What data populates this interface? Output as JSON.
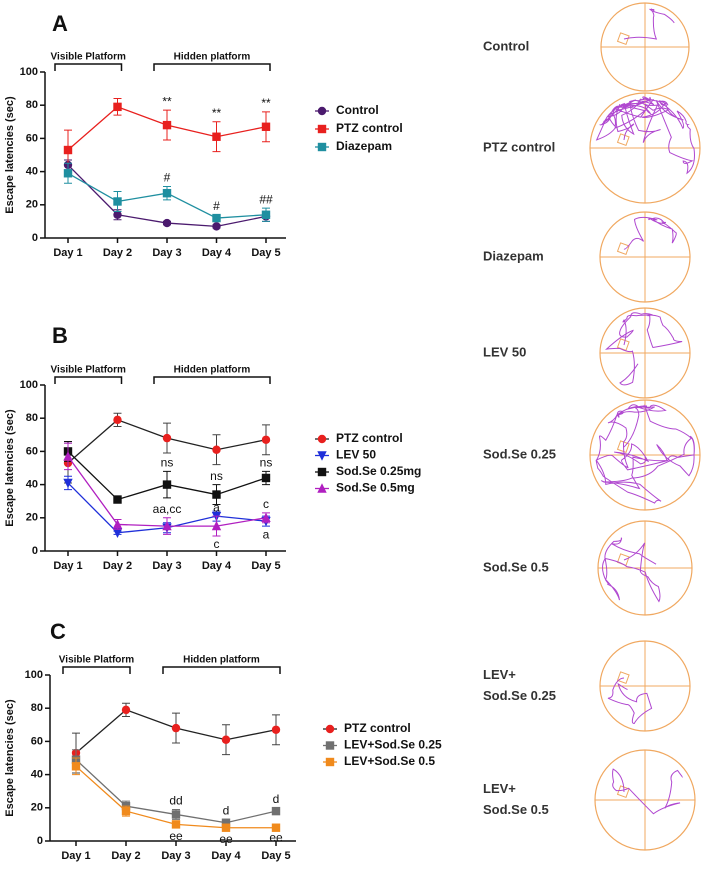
{
  "chart_data": [
    {
      "type": "line",
      "panel": "A",
      "y_label": "Escape latencies (sec)",
      "categories": [
        "Day 1",
        "Day 2",
        "Day 3",
        "Day 4",
        "Day 5"
      ],
      "ylim": [
        0,
        100
      ],
      "yticks": [
        0,
        20,
        40,
        60,
        80,
        100
      ],
      "phases": [
        {
          "label": "Visible Platform",
          "span": [
            "Day 1",
            "Day 2"
          ]
        },
        {
          "label": "Hidden platform",
          "span": [
            "Day 3",
            "Day 5"
          ]
        }
      ],
      "series": [
        {
          "name": "Control",
          "color": "#4b1a6e",
          "marker": "circle",
          "values": [
            44,
            14,
            9,
            7,
            13
          ],
          "errors": [
            3,
            3,
            1,
            1,
            3
          ]
        },
        {
          "name": "PTZ control",
          "color": "#e8201e",
          "marker": "square",
          "values": [
            53,
            79,
            68,
            61,
            67
          ],
          "errors": [
            12,
            5,
            9,
            9,
            9
          ],
          "labels_above": [
            null,
            null,
            "**",
            "**",
            "**"
          ]
        },
        {
          "name": "Diazepam",
          "color": "#1f8fa0",
          "marker": "square",
          "values": [
            39,
            22,
            27,
            12,
            14
          ],
          "errors": [
            6,
            6,
            4,
            2,
            4
          ],
          "labels_above": [
            null,
            null,
            "#",
            "#",
            "##"
          ]
        }
      ]
    },
    {
      "type": "line",
      "panel": "B",
      "y_label": "Escape latencies (sec)",
      "categories": [
        "Day 1",
        "Day 2",
        "Day 3",
        "Day 4",
        "Day 5"
      ],
      "ylim": [
        0,
        100
      ],
      "yticks": [
        0,
        20,
        40,
        60,
        80,
        100
      ],
      "phases": [
        {
          "label": "Visible Platform",
          "span": [
            "Day 1",
            "Day 2"
          ]
        },
        {
          "label": "Hidden platform",
          "span": [
            "Day 3",
            "Day 5"
          ]
        }
      ],
      "series": [
        {
          "name": "PTZ control",
          "color": "#e8201e",
          "line_color": "#222222",
          "marker": "circle",
          "values": [
            53,
            79,
            68,
            61,
            67
          ],
          "errors": [
            12,
            4,
            9,
            9,
            9
          ]
        },
        {
          "name": "LEV 50",
          "color": "#1f2fd9",
          "marker": "triangle-down",
          "values": [
            41,
            11,
            14,
            21,
            18
          ],
          "errors": [
            4,
            1,
            3,
            3,
            3
          ],
          "labels_below": [
            null,
            null,
            null,
            null,
            "a"
          ]
        },
        {
          "name": "Sod.Se 0.25mg",
          "color": "#111111",
          "marker": "square",
          "values": [
            60,
            31,
            40,
            34,
            44
          ],
          "errors": [
            6,
            2,
            8,
            6,
            4
          ],
          "labels_above": [
            null,
            null,
            "ns",
            "ns",
            "ns"
          ]
        },
        {
          "name": "Sod.Se 0.5mg",
          "color": "#b01fc0",
          "marker": "triangle-up",
          "values": [
            57,
            16,
            15,
            15,
            20
          ],
          "errors": [
            8,
            3,
            5,
            6,
            3
          ],
          "labels_above": [
            null,
            null,
            "aa,cc",
            "a",
            "c"
          ],
          "labels_below": [
            null,
            null,
            null,
            "c",
            null
          ]
        }
      ]
    },
    {
      "type": "line",
      "panel": "C",
      "y_label": "Escape latencies (sec)",
      "categories": [
        "Day 1",
        "Day 2",
        "Day 3",
        "Day 4",
        "Day 5"
      ],
      "ylim": [
        0,
        100
      ],
      "yticks": [
        0,
        20,
        40,
        60,
        80,
        100
      ],
      "phases": [
        {
          "label": "Visible Platform",
          "span": [
            "Day 1",
            "Day 2"
          ]
        },
        {
          "label": "Hidden platform",
          "span": [
            "Day 3",
            "Day 5"
          ]
        }
      ],
      "series": [
        {
          "name": "PTZ control",
          "color": "#e8201e",
          "line_color": "#222222",
          "marker": "circle",
          "values": [
            53,
            79,
            68,
            61,
            67
          ],
          "errors": [
            12,
            4,
            9,
            9,
            9
          ]
        },
        {
          "name": "LEV+Sod.Se 0.25",
          "color": "#707070",
          "marker": "square",
          "values": [
            49,
            21,
            16,
            11,
            18
          ],
          "errors": [
            6,
            3,
            3,
            2,
            2
          ],
          "labels_above": [
            null,
            null,
            "dd",
            "d",
            "d"
          ]
        },
        {
          "name": "LEV+Sod.Se 0.5",
          "color": "#f08a1c",
          "marker": "square",
          "values": [
            45,
            18,
            10,
            8,
            8
          ],
          "errors": [
            5,
            3,
            2,
            2,
            1
          ],
          "labels_below": [
            null,
            null,
            "ee",
            "ee",
            "ee"
          ]
        }
      ]
    }
  ],
  "tracks": [
    [
      "Control"
    ],
    [
      "PTZ control"
    ],
    [
      "Diazepam"
    ],
    [
      "LEV 50"
    ],
    [
      "Sod.Se 0.25"
    ],
    [
      "Sod.Se 0.5"
    ],
    [
      "LEV+",
      "Sod.Se 0.25"
    ],
    [
      "LEV+",
      "Sod.Se 0.5"
    ]
  ]
}
